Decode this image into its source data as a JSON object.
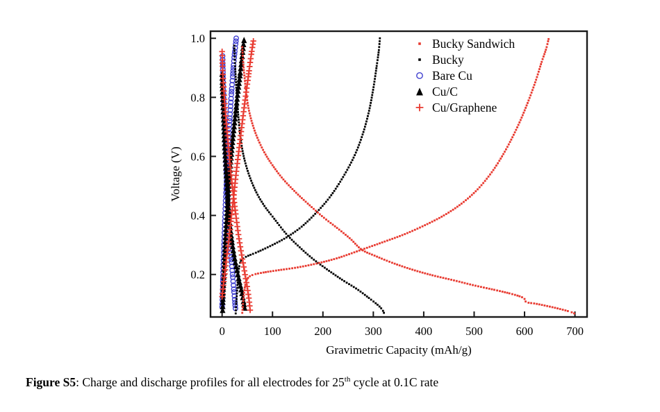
{
  "caption": {
    "label": "Figure S5",
    "colon": ": ",
    "text_before_sup": "Charge and discharge profiles for all electrodes for 25",
    "superscript": "th",
    "text_after_sup": " cycle at 0.1C rate"
  },
  "colors": {
    "red": "#e83a30",
    "blue": "#4040d0",
    "black": "#000000",
    "frame": "#1a1a1a"
  },
  "chart_data": {
    "type": "scatter",
    "title": "",
    "xlabel": "Gravimetric Capacity (mAh/g)",
    "ylabel": "Voltage (V)",
    "xlim": [
      -23,
      724
    ],
    "ylim": [
      0.056,
      1.024
    ],
    "xticks": [
      0,
      100,
      200,
      300,
      400,
      500,
      600,
      700
    ],
    "xtick_labels": [
      "0",
      "100",
      "200",
      "300",
      "400",
      "500",
      "600",
      "700"
    ],
    "yticks": [
      0.2,
      0.4,
      0.6,
      0.8,
      1.0
    ],
    "ytick_labels": [
      "0.2",
      "0.4",
      "0.6",
      "0.8",
      "1.0"
    ],
    "grid": false,
    "legend_position": "top-right-inside",
    "series": [
      {
        "name": "Bucky Sandwich",
        "marker": "square",
        "color": "#e83a30",
        "marker_size": 2.8,
        "spacing": 3.2,
        "z": 4,
        "charge": [
          [
            40,
            0.07
          ],
          [
            42,
            0.11
          ],
          [
            45,
            0.155
          ],
          [
            50,
            0.185
          ],
          [
            60,
            0.198
          ],
          [
            80,
            0.206
          ],
          [
            110,
            0.214
          ],
          [
            150,
            0.224
          ],
          [
            190,
            0.238
          ],
          [
            230,
            0.256
          ],
          [
            277,
            0.284
          ],
          [
            320,
            0.31
          ],
          [
            360,
            0.335
          ],
          [
            400,
            0.365
          ],
          [
            440,
            0.4
          ],
          [
            475,
            0.44
          ],
          [
            505,
            0.485
          ],
          [
            530,
            0.535
          ],
          [
            550,
            0.585
          ],
          [
            570,
            0.645
          ],
          [
            590,
            0.715
          ],
          [
            607,
            0.785
          ],
          [
            622,
            0.855
          ],
          [
            634,
            0.92
          ],
          [
            643,
            0.965
          ],
          [
            648,
            1.0
          ]
        ],
        "discharge": [
          [
            40,
            0.97
          ],
          [
            42,
            0.915
          ],
          [
            45,
            0.86
          ],
          [
            49,
            0.8
          ],
          [
            54,
            0.75
          ],
          [
            62,
            0.7
          ],
          [
            72,
            0.655
          ],
          [
            85,
            0.61
          ],
          [
            100,
            0.57
          ],
          [
            120,
            0.525
          ],
          [
            145,
            0.48
          ],
          [
            170,
            0.44
          ],
          [
            200,
            0.395
          ],
          [
            230,
            0.355
          ],
          [
            255,
            0.32
          ],
          [
            277,
            0.284
          ],
          [
            305,
            0.262
          ],
          [
            340,
            0.238
          ],
          [
            380,
            0.215
          ],
          [
            420,
            0.196
          ],
          [
            460,
            0.18
          ],
          [
            500,
            0.163
          ],
          [
            540,
            0.148
          ],
          [
            570,
            0.136
          ],
          [
            592,
            0.125
          ],
          [
            600,
            0.117
          ],
          [
            604,
            0.106
          ],
          [
            622,
            0.101
          ],
          [
            645,
            0.093
          ],
          [
            668,
            0.084
          ],
          [
            690,
            0.074
          ],
          [
            700,
            0.067
          ]
        ]
      },
      {
        "name": "Bucky",
        "marker": "square",
        "color": "#000000",
        "marker_size": 2.8,
        "spacing": 3.2,
        "z": 3,
        "charge": [
          [
            27,
            0.068
          ],
          [
            28,
            0.1
          ],
          [
            30,
            0.15
          ],
          [
            32,
            0.2
          ],
          [
            35,
            0.235
          ],
          [
            40,
            0.252
          ],
          [
            50,
            0.262
          ],
          [
            70,
            0.276
          ],
          [
            100,
            0.3
          ],
          [
            130,
            0.328
          ],
          [
            160,
            0.365
          ],
          [
            190,
            0.415
          ],
          [
            215,
            0.465
          ],
          [
            240,
            0.53
          ],
          [
            262,
            0.6
          ],
          [
            278,
            0.67
          ],
          [
            291,
            0.75
          ],
          [
            300,
            0.83
          ],
          [
            307,
            0.91
          ],
          [
            311,
            0.96
          ],
          [
            313,
            1.0
          ]
        ],
        "discharge": [
          [
            24,
            0.975
          ],
          [
            26,
            0.9
          ],
          [
            29,
            0.81
          ],
          [
            33,
            0.72
          ],
          [
            38,
            0.645
          ],
          [
            45,
            0.585
          ],
          [
            55,
            0.53
          ],
          [
            68,
            0.478
          ],
          [
            84,
            0.432
          ],
          [
            102,
            0.392
          ],
          [
            127,
            0.338
          ],
          [
            152,
            0.295
          ],
          [
            180,
            0.253
          ],
          [
            210,
            0.215
          ],
          [
            240,
            0.18
          ],
          [
            268,
            0.15
          ],
          [
            293,
            0.118
          ],
          [
            310,
            0.095
          ],
          [
            318,
            0.08
          ],
          [
            321,
            0.07
          ]
        ]
      },
      {
        "name": "Bare Cu",
        "marker": "circle-open",
        "color": "#4040d0",
        "marker_size": 3.3,
        "spacing": 4.0,
        "z": 1,
        "charge": [
          [
            0,
            0.09
          ],
          [
            1,
            0.14
          ],
          [
            2,
            0.2
          ],
          [
            3.5,
            0.28
          ],
          [
            5,
            0.36
          ],
          [
            7,
            0.45
          ],
          [
            9.5,
            0.54
          ],
          [
            12,
            0.63
          ],
          [
            15,
            0.72
          ],
          [
            18,
            0.8
          ],
          [
            21,
            0.87
          ],
          [
            24,
            0.935
          ],
          [
            26.5,
            0.975
          ],
          [
            28,
            1.0
          ]
        ],
        "discharge": [
          [
            1,
            0.94
          ],
          [
            2,
            0.86
          ],
          [
            3.5,
            0.77
          ],
          [
            5.5,
            0.67
          ],
          [
            8,
            0.565
          ],
          [
            10.5,
            0.47
          ],
          [
            13,
            0.39
          ],
          [
            15.5,
            0.32
          ],
          [
            18,
            0.26
          ],
          [
            20.5,
            0.205
          ],
          [
            23,
            0.155
          ],
          [
            25,
            0.115
          ],
          [
            26.5,
            0.085
          ]
        ]
      },
      {
        "name": "Cu/C",
        "marker": "triangle",
        "color": "#000000",
        "marker_size": 4.3,
        "spacing": 4.2,
        "z": 2,
        "charge": [
          [
            1,
            0.08
          ],
          [
            2,
            0.14
          ],
          [
            4,
            0.22
          ],
          [
            6,
            0.3
          ],
          [
            9,
            0.39
          ],
          [
            12,
            0.47
          ],
          [
            16,
            0.56
          ],
          [
            20,
            0.64
          ],
          [
            25,
            0.72
          ],
          [
            30,
            0.8
          ],
          [
            35,
            0.87
          ],
          [
            39,
            0.93
          ],
          [
            42,
            0.975
          ],
          [
            44,
            1.0
          ]
        ],
        "discharge": [
          [
            0,
            0.88
          ],
          [
            1,
            0.82
          ],
          [
            3,
            0.73
          ],
          [
            5,
            0.64
          ],
          [
            8,
            0.545
          ],
          [
            11,
            0.46
          ],
          [
            15,
            0.385
          ],
          [
            19,
            0.32
          ],
          [
            24,
            0.265
          ],
          [
            29,
            0.22
          ],
          [
            34,
            0.18
          ],
          [
            38,
            0.15
          ],
          [
            42,
            0.115
          ],
          [
            45,
            0.085
          ]
        ]
      },
      {
        "name": "Cu/Graphene",
        "marker": "plus",
        "color": "#e83a30",
        "marker_size": 4.2,
        "spacing": 4.2,
        "z": 5,
        "charge": [
          [
            0,
            0.125
          ],
          [
            2,
            0.155
          ],
          [
            4,
            0.185
          ],
          [
            7,
            0.225
          ],
          [
            10,
            0.27
          ],
          [
            14,
            0.325
          ],
          [
            18,
            0.39
          ],
          [
            23,
            0.465
          ],
          [
            28,
            0.545
          ],
          [
            34,
            0.63
          ],
          [
            40,
            0.715
          ],
          [
            46,
            0.795
          ],
          [
            52,
            0.87
          ],
          [
            57,
            0.935
          ],
          [
            61,
            0.98
          ],
          [
            63,
            1.0
          ]
        ],
        "discharge": [
          [
            0,
            0.955
          ],
          [
            1,
            0.9
          ],
          [
            3,
            0.835
          ],
          [
            6,
            0.765
          ],
          [
            9,
            0.7
          ],
          [
            13,
            0.625
          ],
          [
            17,
            0.55
          ],
          [
            22,
            0.475
          ],
          [
            27,
            0.405
          ],
          [
            32,
            0.34
          ],
          [
            37,
            0.285
          ],
          [
            42,
            0.235
          ],
          [
            46,
            0.195
          ],
          [
            50,
            0.155
          ],
          [
            53,
            0.12
          ],
          [
            55,
            0.09
          ],
          [
            56,
            0.072
          ]
        ]
      }
    ]
  }
}
